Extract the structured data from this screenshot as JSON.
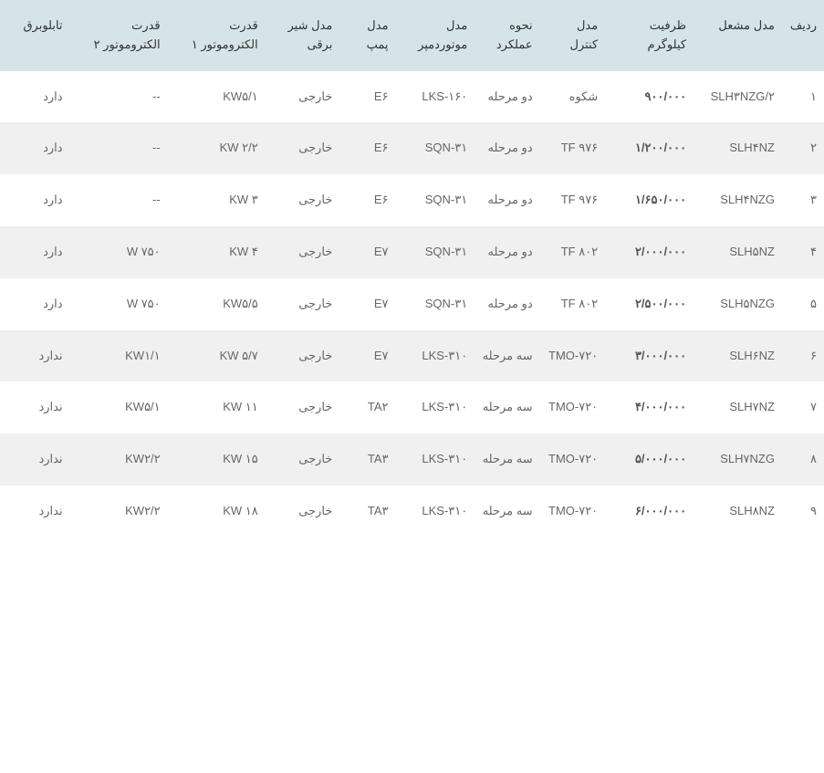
{
  "table": {
    "columns": [
      "ردیف",
      "مدل مشعل",
      "ظرفیت کیلوگرم",
      "مدل کنترل",
      "نحوه عملکرد",
      "مدل موتوردمپر",
      "مدل پمپ",
      "مدل شیر برقی",
      "قدرت الکتروموتور ۱",
      "قدرت الکتروموتور ۲",
      "تابلوبرق"
    ],
    "rows": [
      [
        "۱",
        "SLH۳NZG/۲",
        "۹۰۰/۰۰۰",
        "شکوه",
        "دو مرحله",
        "LKS-۱۶۰",
        "E۶",
        "خارجی",
        "KW۵/۱",
        "--",
        "دارد"
      ],
      [
        "۲",
        "SLH۴NZ",
        "۱/۲۰۰/۰۰۰",
        "TF ۹۷۶",
        "دو مرحله",
        "SQN-۳۱",
        "E۶",
        "خارجی",
        "KW ۲/۲",
        "--",
        "دارد"
      ],
      [
        "۳",
        "SLH۴NZG",
        "۱/۶۵۰/۰۰۰",
        "TF ۹۷۶",
        "دو مرحله",
        "SQN-۳۱",
        "E۶",
        "خارجی",
        "KW ۳",
        "--",
        "دارد"
      ],
      [
        "۴",
        "SLH۵NZ",
        "۲/۰۰۰/۰۰۰",
        "TF ۸۰۲",
        "دو مرحله",
        "SQN-۳۱",
        "E۷",
        "خارجی",
        "KW ۴",
        "W ۷۵۰",
        "دارد"
      ],
      [
        "۵",
        "SLH۵NZG",
        "۲/۵۰۰/۰۰۰",
        "TF ۸۰۲",
        "دو مرحله",
        "SQN-۳۱",
        "E۷",
        "خارجی",
        "KW۵/۵",
        "W ۷۵۰",
        "دارد"
      ],
      [
        "۶",
        "SLH۶NZ",
        "۳/۰۰۰/۰۰۰",
        "TMO-۷۲۰",
        "سه مرحله",
        "LKS-۳۱۰",
        "E۷",
        "خارجی",
        "KW ۵/۷",
        "KW۱/۱",
        "ندارد"
      ],
      [
        "۷",
        "SLH۷NZ",
        "۴/۰۰۰/۰۰۰",
        "TMO-۷۲۰",
        "سه مرحله",
        "LKS-۳۱۰",
        "TA۲",
        "خارجی",
        "KW ۱۱",
        "KW۵/۱",
        "ندارد"
      ],
      [
        "۸",
        "SLH۷NZG",
        "۵/۰۰۰/۰۰۰",
        "TMO-۷۲۰",
        "سه مرحله",
        "LKS-۳۱۰",
        "TA۳",
        "خارجی",
        "KW ۱۵",
        "KW۲/۲",
        "ندارد"
      ],
      [
        "۹",
        "SLH۸NZ",
        "۶/۰۰۰/۰۰۰",
        "TMO-۷۲۰",
        "سه مرحله",
        "LKS-۳۱۰",
        "TA۳",
        "خارجی",
        "KW ۱۸",
        "KW۲/۲",
        "ندارد"
      ]
    ],
    "header_bg_color": "#d6e4ea",
    "row_even_bg_color": "#f0f0f0",
    "row_odd_bg_color": "#ffffff",
    "text_color": "#555555",
    "font_size": 13,
    "bold_columns": [
      2
    ]
  }
}
